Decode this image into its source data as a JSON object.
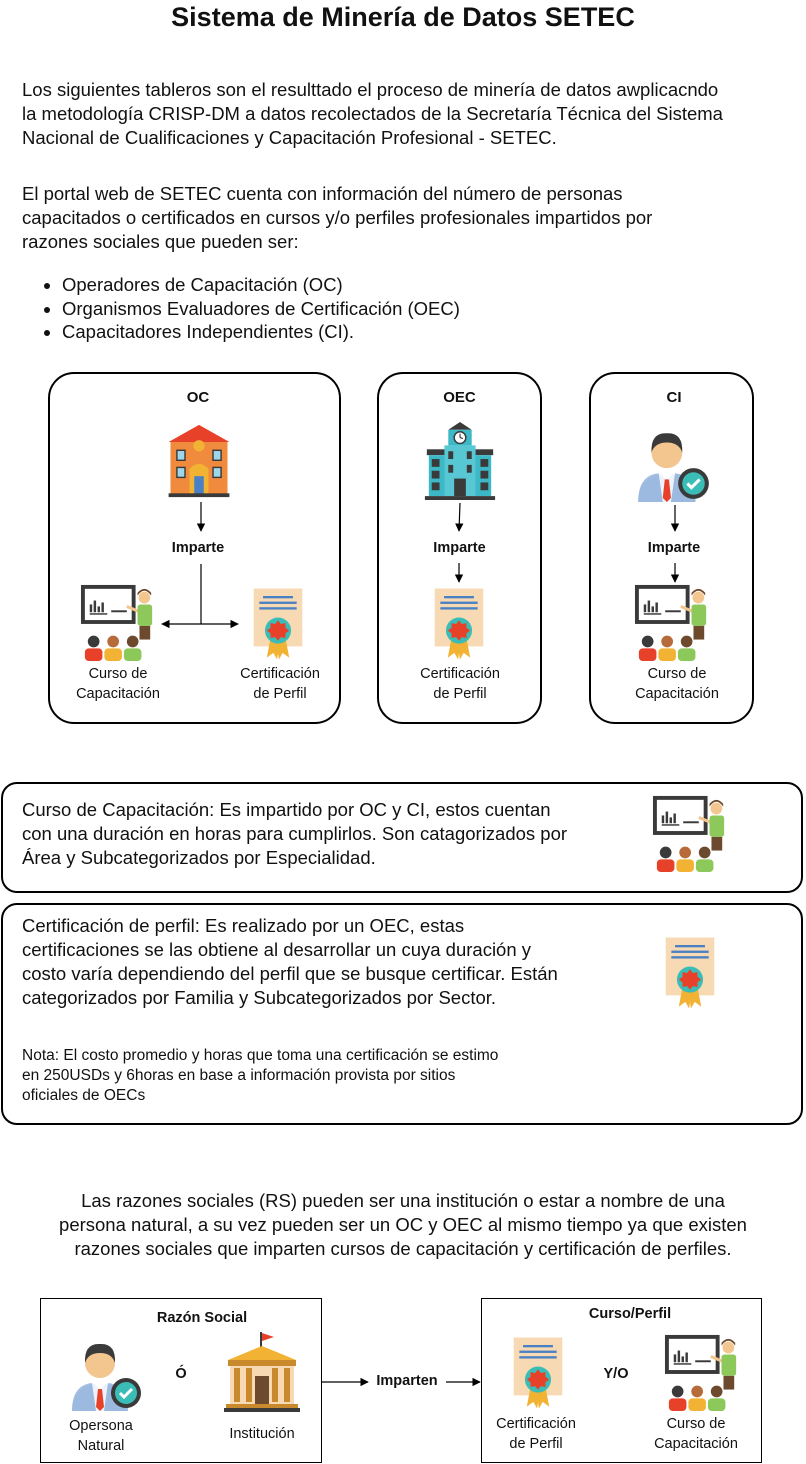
{
  "title": "Sistema de Minería de Datos SETEC",
  "intro_lines": [
    "Los siguientes tableros son el resulttado el proceso de minería de datos awplicacndo",
    "la metodología CRISP-DM a datos recolectados de la Secretaría Técnica del Sistema",
    "Nacional de Cualificaciones y Capacitación Profesional - SETEC."
  ],
  "portal_lines": [
    "El portal web de SETEC cuenta con información del número de personas",
    "capacitados o certificados en cursos y/o perfiles profesionales impartidos por",
    "razones sociales que pueden ser:"
  ],
  "bullets": [
    "Operadores de Capacitación (OC)",
    "Organismos Evaluadores de Certificación (OEC)",
    "Capacitadores Independientes (CI)."
  ],
  "panels": {
    "oc": {
      "title": "OC",
      "action": "Imparte",
      "course": [
        "Curso de",
        "Capacitación"
      ],
      "cert": [
        "Certificación",
        "de Perfil"
      ]
    },
    "oec": {
      "title": "OEC",
      "action": "Imparte",
      "cert": [
        "Certificación",
        "de Perfil"
      ]
    },
    "ci": {
      "title": "CI",
      "action": "Imparte",
      "course": [
        "Curso de",
        "Capacitación"
      ]
    }
  },
  "course_def": [
    "Curso de Capacitación: Es impartido por OC y CI, estos cuentan",
    "con una duración en horas para cumplirlos. Son catagorizados por",
    "Área y Subcategorizados por Especialidad."
  ],
  "cert_def": [
    "Certificación de perfil: Es realizado por un OEC, estas",
    "certificaciones se las obtiene al desarrollar un cuya duración y",
    "costo varía dependiendo del perfil que se busque certificar. Están",
    "categorizados por Familia y Subcategorizados por Sector."
  ],
  "note": [
    "Nota: El costo promedio y horas que toma una certificación se estimo",
    "en 250USDs y 6horas en base a información provista por sitios",
    "oficiales de OECs"
  ],
  "rs_lines": [
    "Las razones sociales (RS) pueden ser una institución o estar a nombre de una",
    "persona natural, a su vez pueden ser un OC y OEC al mismo tiempo ya que existen",
    "razones sociales que imparten cursos de capacitación y certificación de perfiles."
  ],
  "bottom": {
    "rs_title": "Razón Social",
    "or": "Ó",
    "person": [
      "Opersona",
      "Natural"
    ],
    "institution": "Institución",
    "action": "Imparten",
    "cp_title": "Curso/Perfil",
    "yo": "Y/O",
    "cert": [
      "Certificación",
      "de Perfil"
    ],
    "course": [
      "Curso de",
      "Capacitación"
    ]
  },
  "colors": {
    "text": "#111111",
    "border": "#000000",
    "cert_paper": "#f7d9b3",
    "cert_seal": "#e8412a",
    "cert_ring": "#3bbdb7",
    "cert_ribbon": "#f2b233",
    "board": "#3a3a3a",
    "teacher_shirt": "#8cc85a",
    "school_orange": "#f08a3c",
    "building_teal": "#3cb8c6"
  }
}
